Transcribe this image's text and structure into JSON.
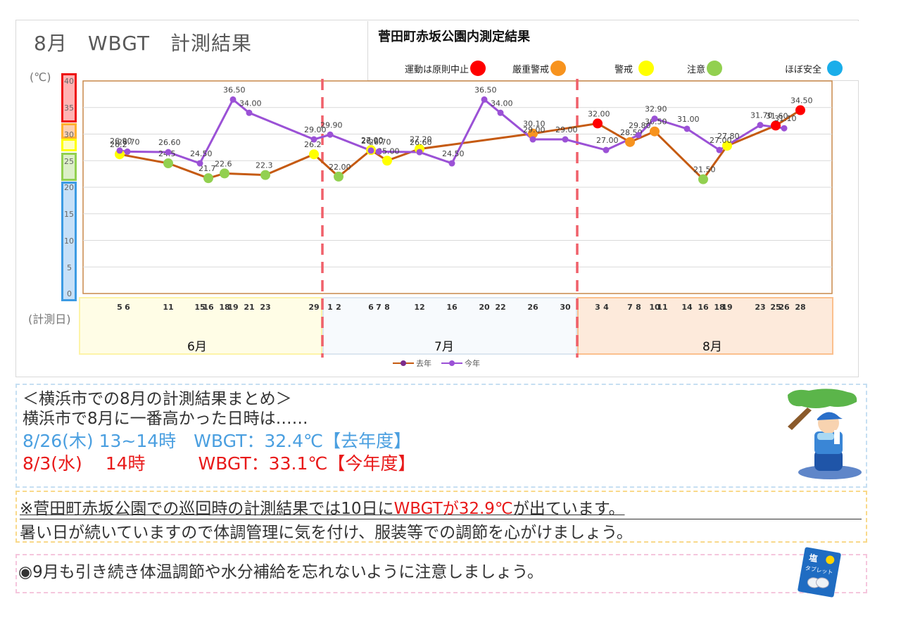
{
  "title": "8月　WBGT　計測結果",
  "legend": {
    "title": "菅田町赤坂公園内測定結果",
    "levels": [
      {
        "label": "運動は原則中止",
        "color": "#ff0000"
      },
      {
        "label": "厳重警戒",
        "color": "#f7931e"
      },
      {
        "label": "警戒",
        "color": "#ffff00"
      },
      {
        "label": "注意",
        "color": "#92d050"
      },
      {
        "label": "ほぼ安全",
        "color": "#1aaeea"
      }
    ]
  },
  "axis": {
    "unit_label": "(℃)",
    "date_label": "(計測日)",
    "y_ticks": [
      "40",
      "35",
      "30",
      "25",
      "20",
      "15",
      "10",
      "5",
      "0"
    ]
  },
  "months": [
    {
      "label": "6月"
    },
    {
      "label": "7月"
    },
    {
      "label": "8月"
    }
  ],
  "series_legend": {
    "last_year": "去年",
    "this_year": "今年"
  },
  "chart_data": {
    "type": "line",
    "title": "8月 WBGT 計測結果",
    "xlabel": "(計測日)",
    "ylabel": "(℃)",
    "ylim": [
      0,
      40
    ],
    "y_ticks": [
      0,
      5,
      10,
      15,
      20,
      25,
      30,
      35,
      40
    ],
    "grid": true,
    "legend_position": "bottom",
    "x_categories": [
      {
        "month": "6月",
        "days": [
          "5",
          "6",
          "11",
          "15",
          "16",
          "18",
          "19",
          "21",
          "23",
          "29"
        ]
      },
      {
        "month": "7月",
        "days": [
          "1",
          "2",
          "6",
          "7",
          "8",
          "12",
          "16",
          "20",
          "22",
          "26",
          "30"
        ]
      },
      {
        "month": "8月",
        "days": [
          "3",
          "4",
          "7",
          "8",
          "10",
          "11",
          "14",
          "16",
          "18",
          "19",
          "23",
          "25",
          "26",
          "28"
        ]
      }
    ],
    "risk_bands": [
      {
        "label": "運動は原則中止",
        "from": 31,
        "to": 40,
        "color": "#ff0000"
      },
      {
        "label": "厳重警戒",
        "from": 28,
        "to": 31,
        "color": "#f7931e"
      },
      {
        "label": "警戒",
        "from": 25,
        "to": 28,
        "color": "#ffff00"
      },
      {
        "label": "注意",
        "from": 21,
        "to": 25,
        "color": "#92d050"
      },
      {
        "label": "ほぼ安全",
        "from": 0,
        "to": 21,
        "color": "#1aaeea"
      }
    ],
    "series": [
      {
        "name": "去年",
        "color": "#c55a11",
        "points": [
          {
            "date": "6/5",
            "value": 26.2,
            "label": "26.2"
          },
          {
            "date": "6/11",
            "value": 24.5,
            "label": "24.5"
          },
          {
            "date": "6/16",
            "value": 21.7,
            "label": "21.7"
          },
          {
            "date": "6/18",
            "value": 22.6,
            "label": "22.6"
          },
          {
            "date": "6/23",
            "value": 22.3,
            "label": "22.3"
          },
          {
            "date": "6/29",
            "value": 26.2,
            "label": "26.2"
          },
          {
            "date": "7/2",
            "value": 22.0,
            "label": "22.00"
          },
          {
            "date": "7/6",
            "value": 27.0,
            "label": "27.00"
          },
          {
            "date": "7/8",
            "value": 25.0,
            "label": "25.00"
          },
          {
            "date": "7/12",
            "value": 27.2,
            "label": "27.20"
          },
          {
            "date": "7/26",
            "value": 30.1,
            "label": "30.10"
          },
          {
            "date": "8/3",
            "value": 32.0,
            "label": "32.00"
          },
          {
            "date": "8/7",
            "value": 28.5,
            "label": "28.50"
          },
          {
            "date": "8/10",
            "value": 30.5,
            "label": "30.50"
          },
          {
            "date": "8/16",
            "value": 21.5,
            "label": "21.50"
          },
          {
            "date": "8/19",
            "value": 27.8,
            "label": "27.80"
          },
          {
            "date": "8/25",
            "value": 31.6,
            "label": "31.60"
          },
          {
            "date": "8/28",
            "value": 34.5,
            "label": "34.50"
          }
        ]
      },
      {
        "name": "今年",
        "color": "#9b51d6",
        "points": [
          {
            "date": "6/5",
            "value": 26.9,
            "label": "26.90"
          },
          {
            "date": "6/6",
            "value": 26.7,
            "label": "26.70"
          },
          {
            "date": "6/11",
            "value": 26.6,
            "label": "26.60"
          },
          {
            "date": "6/15",
            "value": 24.5,
            "label": "24.50"
          },
          {
            "date": "6/19",
            "value": 36.5,
            "label": "36.50"
          },
          {
            "date": "6/21",
            "value": 34.0,
            "label": "34.00"
          },
          {
            "date": "6/29",
            "value": 29.0,
            "label": "29.00"
          },
          {
            "date": "7/1",
            "value": 29.9,
            "label": "29.90"
          },
          {
            "date": "7/6",
            "value": 26.9,
            "label": "26.90"
          },
          {
            "date": "7/7",
            "value": 26.7,
            "label": "26.70"
          },
          {
            "date": "7/12",
            "value": 26.6,
            "label": "26.60"
          },
          {
            "date": "7/16",
            "value": 24.5,
            "label": "24.50"
          },
          {
            "date": "7/20",
            "value": 36.5,
            "label": "36.50"
          },
          {
            "date": "7/22",
            "value": 34.0,
            "label": "34.00"
          },
          {
            "date": "7/26",
            "value": 29.0,
            "label": "29.00"
          },
          {
            "date": "7/30",
            "value": 29.0,
            "label": "29.00"
          },
          {
            "date": "8/4",
            "value": 27.0,
            "label": "27.00"
          },
          {
            "date": "8/8",
            "value": 29.8,
            "label": "29.80"
          },
          {
            "date": "8/10",
            "value": 32.9,
            "label": "32.90"
          },
          {
            "date": "8/14",
            "value": 31.0,
            "label": "31.00"
          },
          {
            "date": "8/18",
            "value": 27.0,
            "label": "27.00"
          },
          {
            "date": "8/23",
            "value": 31.7,
            "label": "31.70"
          },
          {
            "date": "8/26",
            "value": 31.1,
            "label": "31.10"
          }
        ]
      }
    ]
  },
  "summary": {
    "heading": "＜横浜市での8月の計測結果まとめ＞",
    "intro": "横浜市で8月に一番高かった日時は……",
    "last_year_line": "8/26(木) 13~14時　WBGT：32.4℃【去年度】",
    "this_year_line": "8/3(水)　 14時　　　WBGT：33.1℃【今年度】"
  },
  "note": {
    "prefix": "※菅田町赤坂公園での巡回時の計測結果では10日に",
    "highlight": "WBGTが32.9℃",
    "suffix": "が出ています。",
    "line2": "暑い日が続いていますので体調管理に気を付け、服装等での調節を心がけましょう。"
  },
  "reminder": {
    "text": "◉9月も引き続き体温調節や水分補給を忘れないように注意しましょう。"
  },
  "illustrations": {
    "resting_person": "person-drinking-water-under-tree-illustration",
    "salt_tablet": "塩タブレット"
  }
}
